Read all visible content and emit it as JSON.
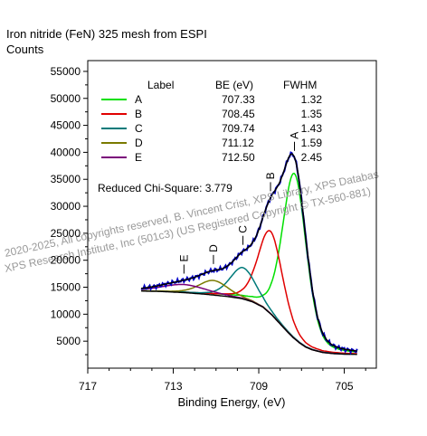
{
  "title": "Iron nitride (FeN) 325 mesh from ESPI",
  "y_axis_label": "Counts",
  "x_axis_label": "Binding Energy, (eV)",
  "chi_square": "Reduced Chi-Square: 3.779",
  "legend_headers": {
    "label": "Label",
    "be": "BE (eV)",
    "fwhm": "FWHM"
  },
  "watermark_lines": [
    "2020-2025,  All copyrights reserved,   B. Vincent Crist,   XPS Library, XPS Databas",
    "XPS Research Institute, Inc (501c3)   (US Registered Copyright © TX-560-881)"
  ],
  "colors": {
    "A": "#00e000",
    "B": "#e00000",
    "C": "#007a7a",
    "D": "#7a7a00",
    "E": "#7a007a",
    "envelope": "#000000",
    "raw": "#0000c8",
    "background": "#000000"
  },
  "chart_data": {
    "type": "line",
    "x_reversed": true,
    "xlim": [
      717,
      703.5
    ],
    "ylim": [
      0,
      57000
    ],
    "x_ticks": [
      717,
      713,
      709,
      705
    ],
    "y_ticks": [
      5000,
      10000,
      15000,
      20000,
      25000,
      30000,
      35000,
      40000,
      45000,
      50000,
      55000
    ],
    "baseline": {
      "x": [
        714.5,
        713.5,
        712.5,
        711.5,
        710.5,
        709.8,
        709.3,
        708.8,
        708.4,
        708.0,
        707.7,
        707.4,
        707.1,
        706.8,
        706.5,
        706.0,
        705.5,
        705.0,
        704.4
      ],
      "y": [
        14300,
        14200,
        14000,
        13700,
        13300,
        12900,
        12300,
        11300,
        9900,
        8200,
        6900,
        5700,
        4700,
        3900,
        3400,
        2900,
        2700,
        2600,
        2550
      ]
    },
    "peaks": [
      {
        "label": "A",
        "be": 707.33,
        "fwhm": 1.32,
        "height": 30600
      },
      {
        "label": "B",
        "be": 708.45,
        "fwhm": 1.35,
        "height": 15300
      },
      {
        "label": "C",
        "be": 709.74,
        "fwhm": 1.43,
        "height": 5800
      },
      {
        "label": "D",
        "be": 711.12,
        "fwhm": 1.59,
        "height": 2700
      },
      {
        "label": "E",
        "be": 712.5,
        "fwhm": 2.45,
        "height": 1500
      }
    ],
    "legend": [
      {
        "label": "A",
        "be": "707.33",
        "fwhm": "1.32"
      },
      {
        "label": "B",
        "be": "708.45",
        "fwhm": "1.35"
      },
      {
        "label": "C",
        "be": "709.74",
        "fwhm": "1.43"
      },
      {
        "label": "D",
        "be": "711.12",
        "fwhm": "1.59"
      },
      {
        "label": "E",
        "be": "712.50",
        "fwhm": "2.45"
      }
    ]
  }
}
